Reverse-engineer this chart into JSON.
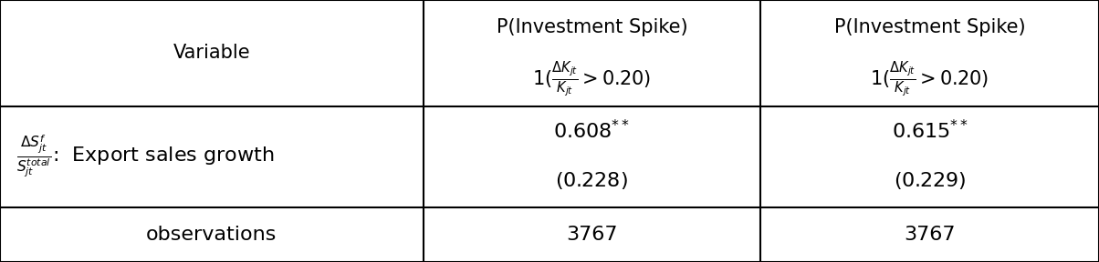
{
  "figsize": [
    12.04,
    2.88
  ],
  "dpi": 100,
  "bg_color": "#ffffff",
  "line_color": "#000000",
  "col_bounds": [
    0.0,
    0.385,
    0.692,
    1.0
  ],
  "row_tops": [
    1.0,
    0.595,
    0.21
  ],
  "row_bottoms": [
    0.595,
    0.21,
    0.0
  ],
  "header": {
    "col0": "Variable",
    "col1_l1": "P(Investment Spike)",
    "col1_l2": "$1(\\frac{\\Delta K_{jt}}{K_{jt}} > 0.20)$",
    "col2_l1": "P(Investment Spike)",
    "col2_l2": "$1(\\frac{\\Delta K_{jt}}{K_{jt}} > 0.20)$"
  },
  "data": {
    "col0_math": "$\\frac{\\Delta S^{f}_{jt}}{S^{total}_{jt}}$",
    "col0_text": ":  Export sales growth",
    "col1_l1": "$0.608^{**}$",
    "col1_l2": "$(0.228)$",
    "col2_l1": "$0.615^{**}$",
    "col2_l2": "$(0.229)$"
  },
  "obs": {
    "col0": "observations",
    "col1": "3767",
    "col2": "3767"
  },
  "fs_header": 15,
  "fs_header_math": 15,
  "fs_data": 16,
  "fs_obs": 16,
  "lw": 1.5
}
